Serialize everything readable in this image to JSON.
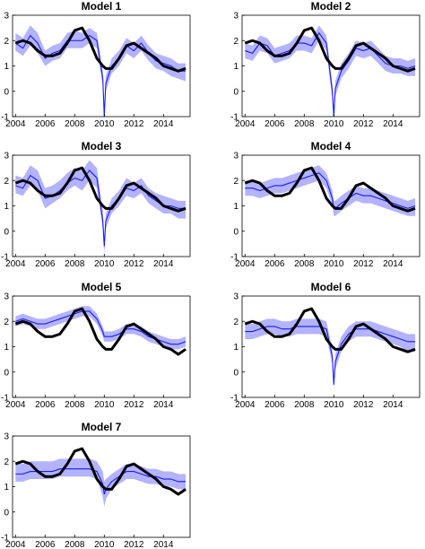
{
  "chart_data": [
    {
      "type": "area",
      "title": "Model 1",
      "xlim": [
        2003.8,
        2015.8
      ],
      "ylim": [
        -1,
        3
      ],
      "xticks": [
        2004,
        2006,
        2008,
        2010,
        2012,
        2014
      ],
      "yticks": [
        -1,
        0,
        1,
        2,
        3
      ],
      "x": [
        2004.0,
        2004.5,
        2005.0,
        2005.5,
        2006.0,
        2006.5,
        2007.0,
        2007.5,
        2008.0,
        2008.5,
        2009.0,
        2009.5,
        2009.9,
        2010.0,
        2010.1,
        2010.5,
        2011.0,
        2011.5,
        2012.0,
        2012.5,
        2013.0,
        2013.5,
        2014.0,
        2014.5,
        2015.0,
        2015.5
      ],
      "series": [
        {
          "values": [
            1.9,
            1.7,
            2.2,
            1.9,
            1.3,
            1.5,
            1.6,
            2.0,
            2.0,
            2.0,
            2.2,
            2.0,
            0.5,
            -1.0,
            0.3,
            1.0,
            1.3,
            1.8,
            1.6,
            1.9,
            1.5,
            1.2,
            1.1,
            1.0,
            0.8,
            0.8
          ]
        },
        {
          "values": [
            1.9,
            2.0,
            1.9,
            1.6,
            1.4,
            1.4,
            1.5,
            1.9,
            2.4,
            2.5,
            2.0,
            1.3,
            1.0,
            0.95,
            0.9,
            0.9,
            1.3,
            1.8,
            1.9,
            1.7,
            1.5,
            1.3,
            1.0,
            0.9,
            0.8,
            0.9
          ]
        }
      ],
      "band_lower": [
        1.6,
        1.4,
        1.8,
        1.5,
        1.0,
        1.2,
        1.3,
        1.7,
        1.7,
        1.7,
        1.9,
        1.7,
        0.2,
        -1.0,
        0.0,
        0.7,
        1.0,
        1.5,
        1.3,
        1.6,
        1.2,
        0.9,
        0.8,
        0.6,
        0.5,
        0.4
      ],
      "band_upper": [
        2.3,
        2.1,
        2.6,
        2.3,
        1.6,
        1.8,
        1.9,
        2.3,
        2.4,
        2.3,
        2.5,
        2.3,
        0.8,
        -0.6,
        0.6,
        1.3,
        1.6,
        2.1,
        1.9,
        2.2,
        1.8,
        1.5,
        1.4,
        1.3,
        1.1,
        1.1
      ]
    },
    {
      "type": "area",
      "title": "Model 2",
      "xlim": [
        2003.8,
        2015.8
      ],
      "ylim": [
        -1,
        3
      ],
      "xticks": [
        2004,
        2006,
        2008,
        2010,
        2012,
        2014
      ],
      "yticks": [
        -1,
        0,
        1,
        2,
        3
      ],
      "x": [
        2004.0,
        2004.5,
        2005.0,
        2005.5,
        2006.0,
        2006.5,
        2007.0,
        2007.5,
        2008.0,
        2008.5,
        2009.0,
        2009.5,
        2009.9,
        2010.0,
        2010.1,
        2010.5,
        2011.0,
        2011.5,
        2012.0,
        2012.5,
        2013.0,
        2013.5,
        2014.0,
        2014.5,
        2015.0,
        2015.5
      ],
      "series": [
        {
          "values": [
            1.6,
            1.5,
            1.9,
            1.8,
            1.4,
            1.5,
            1.6,
            1.9,
            1.9,
            1.8,
            2.3,
            1.9,
            0.0,
            -1.0,
            0.1,
            0.8,
            1.2,
            1.7,
            1.6,
            1.7,
            1.4,
            1.1,
            1.0,
            1.0,
            0.9,
            1.0
          ]
        },
        {
          "values": [
            1.9,
            2.0,
            1.9,
            1.6,
            1.4,
            1.4,
            1.5,
            1.9,
            2.4,
            2.5,
            2.0,
            1.3,
            1.0,
            0.95,
            0.9,
            0.9,
            1.3,
            1.8,
            1.9,
            1.7,
            1.5,
            1.3,
            1.0,
            0.9,
            0.8,
            0.9
          ]
        }
      ],
      "band_lower": [
        1.3,
        1.2,
        1.6,
        1.5,
        1.1,
        1.2,
        1.3,
        1.6,
        1.6,
        1.5,
        2.0,
        1.6,
        -0.3,
        -1.0,
        -0.2,
        0.5,
        0.9,
        1.4,
        1.3,
        1.4,
        1.1,
        0.8,
        0.7,
        0.7,
        0.6,
        0.6
      ],
      "band_upper": [
        1.9,
        1.8,
        2.2,
        2.1,
        1.7,
        1.8,
        1.9,
        2.2,
        2.2,
        2.1,
        2.6,
        2.2,
        0.3,
        -0.6,
        0.4,
        1.1,
        1.5,
        2.0,
        1.9,
        2.0,
        1.7,
        1.4,
        1.3,
        1.3,
        1.2,
        1.3
      ]
    },
    {
      "type": "area",
      "title": "Model 3",
      "xlim": [
        2003.8,
        2015.8
      ],
      "ylim": [
        -1,
        3
      ],
      "xticks": [
        2004,
        2006,
        2008,
        2010,
        2012,
        2014
      ],
      "yticks": [
        -1,
        0,
        1,
        2,
        3
      ],
      "x": [
        2004.0,
        2004.5,
        2005.0,
        2005.5,
        2006.0,
        2006.5,
        2007.0,
        2007.5,
        2008.0,
        2008.5,
        2009.0,
        2009.5,
        2009.9,
        2010.0,
        2010.1,
        2010.5,
        2011.0,
        2011.5,
        2012.0,
        2012.5,
        2013.0,
        2013.5,
        2014.0,
        2014.5,
        2015.0,
        2015.5
      ],
      "series": [
        {
          "values": [
            1.8,
            1.7,
            2.2,
            2.0,
            1.3,
            1.4,
            1.6,
            1.9,
            2.1,
            2.0,
            2.4,
            2.1,
            0.4,
            -0.6,
            0.4,
            1.0,
            1.3,
            1.7,
            1.6,
            1.8,
            1.4,
            1.2,
            1.0,
            1.0,
            0.9,
            0.9
          ]
        },
        {
          "values": [
            1.9,
            2.0,
            1.9,
            1.6,
            1.4,
            1.4,
            1.5,
            1.9,
            2.4,
            2.5,
            2.0,
            1.3,
            1.0,
            0.95,
            0.9,
            0.9,
            1.3,
            1.8,
            1.9,
            1.7,
            1.5,
            1.3,
            1.0,
            0.9,
            0.8,
            0.9
          ]
        }
      ],
      "band_lower": [
        1.5,
        1.4,
        1.8,
        1.6,
        0.9,
        1.1,
        1.3,
        1.6,
        1.8,
        1.6,
        2.0,
        1.7,
        0.1,
        -0.9,
        0.1,
        0.7,
        1.0,
        1.4,
        1.3,
        1.5,
        1.1,
        0.9,
        0.7,
        0.7,
        0.5,
        0.5
      ],
      "band_upper": [
        2.2,
        2.1,
        2.6,
        2.4,
        1.7,
        1.8,
        2.0,
        2.3,
        2.5,
        2.4,
        2.8,
        2.5,
        0.8,
        -0.2,
        0.7,
        1.3,
        1.6,
        2.1,
        1.9,
        2.1,
        1.7,
        1.5,
        1.4,
        1.3,
        1.2,
        1.2
      ]
    },
    {
      "type": "area",
      "title": "Model 4",
      "xlim": [
        2003.8,
        2015.8
      ],
      "ylim": [
        -1,
        3
      ],
      "xticks": [
        2004,
        2006,
        2008,
        2010,
        2012,
        2014
      ],
      "yticks": [
        -1,
        0,
        1,
        2,
        3
      ],
      "x": [
        2004.0,
        2004.5,
        2005.0,
        2005.5,
        2006.0,
        2006.5,
        2007.0,
        2007.5,
        2008.0,
        2008.5,
        2009.0,
        2009.5,
        2009.9,
        2010.0,
        2010.1,
        2010.5,
        2011.0,
        2011.5,
        2012.0,
        2012.5,
        2013.0,
        2013.5,
        2014.0,
        2014.5,
        2015.0,
        2015.5
      ],
      "series": [
        {
          "values": [
            1.7,
            1.7,
            1.6,
            1.7,
            1.8,
            1.8,
            1.9,
            2.0,
            2.1,
            2.2,
            2.3,
            2.0,
            1.3,
            0.9,
            0.9,
            1.1,
            1.3,
            1.5,
            1.4,
            1.4,
            1.3,
            1.2,
            1.1,
            1.0,
            0.9,
            1.0
          ]
        },
        {
          "values": [
            1.9,
            2.0,
            1.9,
            1.6,
            1.4,
            1.4,
            1.5,
            1.9,
            2.4,
            2.5,
            2.0,
            1.3,
            1.0,
            0.95,
            0.9,
            0.9,
            1.3,
            1.8,
            1.9,
            1.7,
            1.5,
            1.3,
            1.0,
            0.9,
            0.8,
            0.9
          ]
        }
      ],
      "band_lower": [
        1.4,
        1.4,
        1.3,
        1.4,
        1.5,
        1.5,
        1.6,
        1.7,
        1.8,
        1.9,
        2.0,
        1.7,
        1.0,
        0.6,
        0.6,
        0.8,
        1.0,
        1.2,
        1.1,
        1.1,
        1.0,
        0.9,
        0.8,
        0.7,
        0.6,
        0.6
      ],
      "band_upper": [
        2.0,
        2.0,
        1.9,
        2.0,
        2.1,
        2.1,
        2.2,
        2.3,
        2.4,
        2.5,
        2.6,
        2.3,
        1.6,
        1.2,
        1.2,
        1.4,
        1.6,
        1.8,
        1.7,
        1.7,
        1.6,
        1.5,
        1.4,
        1.3,
        1.2,
        1.3
      ]
    },
    {
      "type": "area",
      "title": "Model 5",
      "xlim": [
        2003.8,
        2015.8
      ],
      "ylim": [
        -1,
        3
      ],
      "xticks": [
        2004,
        2006,
        2008,
        2010,
        2012,
        2014
      ],
      "yticks": [
        -1,
        0,
        1,
        2,
        3
      ],
      "x": [
        2004.0,
        2004.5,
        2005.0,
        2005.5,
        2006.0,
        2006.5,
        2007.0,
        2007.5,
        2008.0,
        2008.5,
        2009.0,
        2009.5,
        2009.9,
        2010.0,
        2010.1,
        2010.5,
        2011.0,
        2011.5,
        2012.0,
        2012.5,
        2013.0,
        2013.5,
        2014.0,
        2014.5,
        2015.0,
        2015.5
      ],
      "series": [
        {
          "values": [
            2.0,
            2.1,
            2.0,
            1.9,
            1.9,
            2.0,
            2.1,
            2.2,
            2.3,
            2.4,
            2.4,
            2.1,
            1.6,
            1.4,
            1.4,
            1.4,
            1.5,
            1.7,
            1.7,
            1.6,
            1.4,
            1.3,
            1.2,
            1.1,
            1.1,
            1.2
          ]
        },
        {
          "values": [
            1.9,
            2.0,
            1.9,
            1.6,
            1.4,
            1.4,
            1.5,
            1.9,
            2.4,
            2.5,
            2.0,
            1.3,
            1.0,
            0.95,
            0.9,
            0.9,
            1.3,
            1.8,
            1.9,
            1.7,
            1.5,
            1.3,
            1.0,
            0.9,
            0.7,
            0.9
          ]
        }
      ],
      "band_lower": [
        1.8,
        1.9,
        1.8,
        1.7,
        1.7,
        1.8,
        1.9,
        2.0,
        2.1,
        2.2,
        2.2,
        1.9,
        1.4,
        1.2,
        1.2,
        1.2,
        1.3,
        1.5,
        1.5,
        1.4,
        1.2,
        1.1,
        1.0,
        0.9,
        0.9,
        1.0
      ],
      "band_upper": [
        2.2,
        2.3,
        2.2,
        2.1,
        2.1,
        2.2,
        2.3,
        2.4,
        2.5,
        2.6,
        2.6,
        2.3,
        1.8,
        1.6,
        1.6,
        1.6,
        1.7,
        1.9,
        1.9,
        1.8,
        1.6,
        1.5,
        1.4,
        1.3,
        1.3,
        1.4
      ]
    },
    {
      "type": "area",
      "title": "Model 6",
      "xlim": [
        2003.8,
        2015.8
      ],
      "ylim": [
        -1,
        3
      ],
      "xticks": [
        2004,
        2006,
        2008,
        2010,
        2012,
        2014
      ],
      "yticks": [
        -1,
        0,
        1,
        2,
        3
      ],
      "x": [
        2004.0,
        2004.5,
        2005.0,
        2005.5,
        2006.0,
        2006.5,
        2007.0,
        2007.5,
        2008.0,
        2008.5,
        2009.0,
        2009.5,
        2009.9,
        2010.0,
        2010.1,
        2010.5,
        2011.0,
        2011.5,
        2012.0,
        2012.5,
        2013.0,
        2013.5,
        2014.0,
        2014.5,
        2015.0,
        2015.5
      ],
      "series": [
        {
          "values": [
            1.6,
            1.6,
            1.7,
            1.8,
            1.8,
            1.7,
            1.7,
            1.8,
            1.8,
            1.8,
            1.8,
            1.7,
            0.6,
            -0.5,
            0.4,
            1.1,
            1.5,
            1.7,
            1.7,
            1.7,
            1.6,
            1.5,
            1.4,
            1.3,
            1.2,
            1.2
          ]
        },
        {
          "values": [
            1.9,
            2.0,
            1.9,
            1.6,
            1.4,
            1.4,
            1.5,
            1.9,
            2.4,
            2.5,
            2.0,
            1.3,
            1.0,
            0.95,
            0.9,
            0.9,
            1.3,
            1.8,
            1.9,
            1.7,
            1.5,
            1.3,
            1.0,
            0.9,
            0.8,
            0.9
          ]
        }
      ],
      "band_lower": [
        1.3,
        1.3,
        1.4,
        1.5,
        1.5,
        1.4,
        1.4,
        1.5,
        1.5,
        1.5,
        1.5,
        1.4,
        0.3,
        -0.6,
        0.1,
        0.8,
        1.2,
        1.4,
        1.4,
        1.4,
        1.3,
        1.2,
        1.1,
        1.0,
        0.8,
        0.8
      ],
      "band_upper": [
        1.9,
        1.9,
        2.0,
        2.1,
        2.1,
        2.0,
        2.0,
        2.1,
        2.1,
        2.1,
        2.1,
        2.0,
        0.9,
        -0.3,
        0.7,
        1.4,
        1.8,
        2.0,
        2.0,
        2.0,
        1.9,
        1.8,
        1.7,
        1.6,
        1.5,
        1.5
      ]
    },
    {
      "type": "area",
      "title": "Model 7",
      "xlim": [
        2003.8,
        2015.8
      ],
      "ylim": [
        -1,
        3
      ],
      "xticks": [
        2004,
        2006,
        2008,
        2010,
        2012,
        2014
      ],
      "yticks": [
        -1,
        0,
        1,
        2,
        3
      ],
      "x": [
        2004.0,
        2004.5,
        2005.0,
        2005.5,
        2006.0,
        2006.5,
        2007.0,
        2007.5,
        2008.0,
        2008.5,
        2009.0,
        2009.5,
        2009.9,
        2010.0,
        2010.1,
        2010.5,
        2011.0,
        2011.5,
        2012.0,
        2012.5,
        2013.0,
        2013.5,
        2014.0,
        2014.5,
        2015.0,
        2015.5
      ],
      "series": [
        {
          "values": [
            1.5,
            1.5,
            1.6,
            1.6,
            1.6,
            1.6,
            1.7,
            1.7,
            1.7,
            1.7,
            1.7,
            1.6,
            1.1,
            0.7,
            0.9,
            1.2,
            1.4,
            1.6,
            1.6,
            1.5,
            1.4,
            1.4,
            1.3,
            1.3,
            1.2,
            1.2
          ]
        },
        {
          "values": [
            1.9,
            2.0,
            1.9,
            1.6,
            1.4,
            1.4,
            1.5,
            1.9,
            2.4,
            2.5,
            2.0,
            1.3,
            1.0,
            0.95,
            0.9,
            0.9,
            1.3,
            1.8,
            1.9,
            1.7,
            1.5,
            1.3,
            1.0,
            0.9,
            0.7,
            0.9
          ]
        }
      ],
      "band_lower": [
        1.2,
        1.2,
        1.3,
        1.3,
        1.3,
        1.3,
        1.4,
        1.4,
        1.4,
        1.4,
        1.4,
        1.3,
        0.6,
        0.2,
        0.5,
        0.9,
        1.1,
        1.3,
        1.3,
        1.2,
        1.1,
        1.1,
        1.0,
        1.0,
        0.9,
        0.9
      ],
      "band_upper": [
        1.9,
        1.9,
        2.0,
        2.0,
        2.0,
        2.0,
        2.1,
        2.1,
        2.1,
        2.1,
        2.1,
        2.0,
        1.6,
        1.2,
        1.3,
        1.5,
        1.7,
        1.9,
        1.9,
        1.8,
        1.7,
        1.7,
        1.6,
        1.6,
        1.5,
        1.5
      ]
    }
  ],
  "colors": {
    "band": "#9999ff",
    "median": "#1a1aff",
    "actual": "#000000"
  }
}
